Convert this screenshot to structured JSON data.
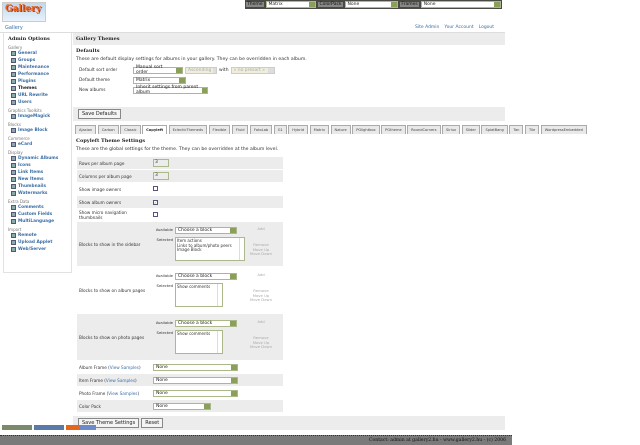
{
  "topbar": {
    "theme_label": "Theme",
    "theme_value": "Matrix",
    "colorpack_label": "ColorPack",
    "colorpack_value": "None",
    "frames_label": "Frames",
    "frames_value": "None"
  },
  "logo_text": "Gallery",
  "breadcrumb": "Gallery",
  "toplinks": [
    "Site Admin",
    "Your Account",
    "Logout"
  ],
  "sidebar": {
    "title": "Admin Options",
    "groups": [
      {
        "name": "Gallery",
        "items": [
          "General",
          "Groups",
          "Maintenance",
          "Performance",
          "Plugins",
          "Themes",
          "URL Rewrite",
          "Users"
        ]
      },
      {
        "name": "Graphics Toolkits",
        "items": [
          "ImageMagick"
        ]
      },
      {
        "name": "Blocks",
        "items": [
          "Image Block"
        ]
      },
      {
        "name": "Commerce",
        "items": [
          "eCard"
        ]
      },
      {
        "name": "Display",
        "items": [
          "Dynamic Albums",
          "Icons",
          "Link Items",
          "New Items",
          "Thumbnails",
          "Watermarks"
        ]
      },
      {
        "name": "Extra Data",
        "items": [
          "Comments",
          "Custom Fields",
          "MultiLanguage"
        ]
      },
      {
        "name": "Import",
        "items": [
          "Remote",
          "Upload Applet",
          "Web/Server"
        ]
      }
    ],
    "current": "Themes"
  },
  "main": {
    "title": "Gallery Themes",
    "defaults_title": "Defaults",
    "defaults_desc": "These are default display settings for albums in your gallery. They can be overridden in each album.",
    "sort_label": "Default sort order",
    "sort_value": "Manual sort order",
    "sort_dir": "Ascending",
    "with_label": "with",
    "with_value": "« no presort »",
    "theme_label": "Default theme",
    "theme_value": "Matrix",
    "new_label": "New albums",
    "new_value": "Inherit settings from parent album",
    "save_defaults": "Save Defaults"
  },
  "tabs": [
    "Ajaxian",
    "Carbon",
    "Classic",
    "Copyleft",
    "EclecticThemeds",
    "Flexible",
    "Fluid",
    "FotoLab",
    "G1",
    "Hybrid",
    "Matrix",
    "Nature",
    "PGlightbox",
    "PGtheme",
    "RoundCorners",
    "Siriux",
    "Slider",
    "SplatBang",
    "Tan",
    "Tile",
    "WordpressEmbedded"
  ],
  "active_tab": "Copyleft",
  "theme": {
    "title": "Copyleft Theme Settings",
    "desc": "These are the global settings for the theme. They can be overridden at the album level.",
    "rows_label": "Rows per album page",
    "rows_value": "3",
    "cols_label": "Columns per album page",
    "cols_value": "3",
    "owners_img_label": "Show image owners",
    "owners_img_checked": false,
    "owners_alb_label": "Show album owners",
    "owners_alb_checked": true,
    "micro_label": "Show micro navigation thumbnails",
    "micro_checked": false,
    "available": "Available",
    "selected": "Selected",
    "choose": "Choose a block",
    "add": "Add",
    "remove": "Remove",
    "up": "Move Up",
    "down": "Move Down",
    "sidebar_label": "Blocks to show in the sidebar",
    "sidebar_blocks": [
      "Item actions",
      "Links to album/photo peers",
      "Image Block"
    ],
    "album_label": "Blocks to show on album pages",
    "album_blocks": [
      "Show comments"
    ],
    "photo_label": "Blocks to show on photo pages",
    "photo_blocks": [
      "Show comments"
    ],
    "view_samples": "View Samples",
    "album_frame_label": "Album Frame",
    "album_frame": "None",
    "item_frame_label": "Item Frame",
    "item_frame": "None",
    "photo_frame_label": "Photo Frame",
    "photo_frame": "None",
    "colorpack_label": "Color Pack",
    "colorpack": "None",
    "save": "Save Theme Settings",
    "reset": "Reset"
  },
  "footer": "Contact: admin at gallery2.hu - www.gallery2.hu - (c) 2006"
}
